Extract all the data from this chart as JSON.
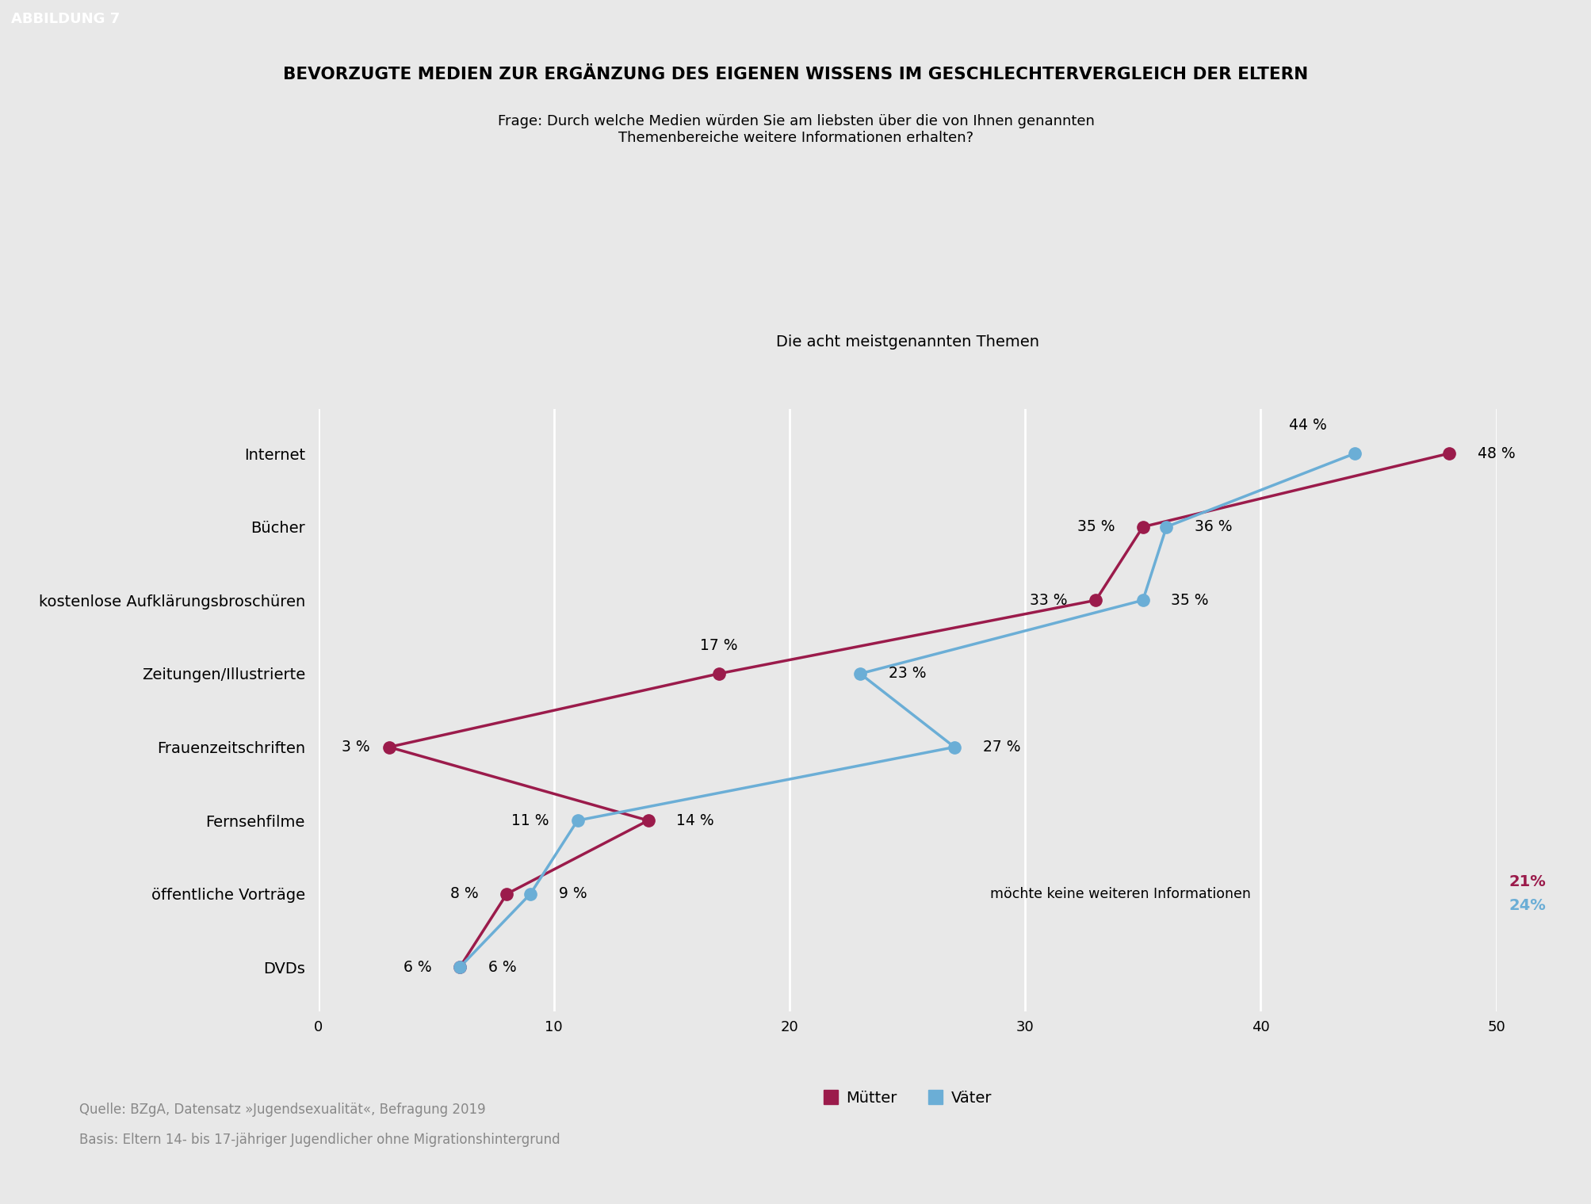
{
  "title": "BEVORZUGTE MEDIEN ZUR ERGÄNZUNG DES EIGENEN WISSENS IM GESCHLECHTERVERGLEICH DER ELTERN",
  "subtitle": "Frage: Durch welche Medien würden Sie am liebsten über die von Ihnen genannten\nThemenbereiche weitere Informationen erhalten?",
  "axis_label": "Die acht meistgenannten Themen",
  "categories": [
    "Internet",
    "Bücher",
    "kostenlose Aufklärungsbroschüren",
    "Zeitungen/Illustrierte",
    "Frauenzeitschriften",
    "Fernsehfilme",
    "öffentliche Vorträge",
    "DVDs"
  ],
  "muetter_values": [
    48,
    35,
    33,
    17,
    3,
    14,
    8,
    6
  ],
  "vaeter_values": [
    44,
    36,
    35,
    23,
    27,
    11,
    9,
    6
  ],
  "muetter_color": "#9B1B4B",
  "vaeter_color": "#6BAED6",
  "muetter_label": "Mütter",
  "vaeter_label": "Väter",
  "muetter_no_info": "21%",
  "vaeter_no_info": "24%",
  "no_info_label": "möchte keine weiteren Informationen",
  "xlim": [
    0,
    50
  ],
  "xticks": [
    0,
    10,
    20,
    30,
    40,
    50
  ],
  "background_color": "#E8E8E8",
  "header_label": "ABBILDUNG 7",
  "source_line1": "Quelle: BZgA, Datensatz »Jugendsexualität«, Befragung 2019",
  "source_line2": "Basis: Eltern 14- bis 17-jähriger Jugendlicher ohne Migrationshintergrund"
}
